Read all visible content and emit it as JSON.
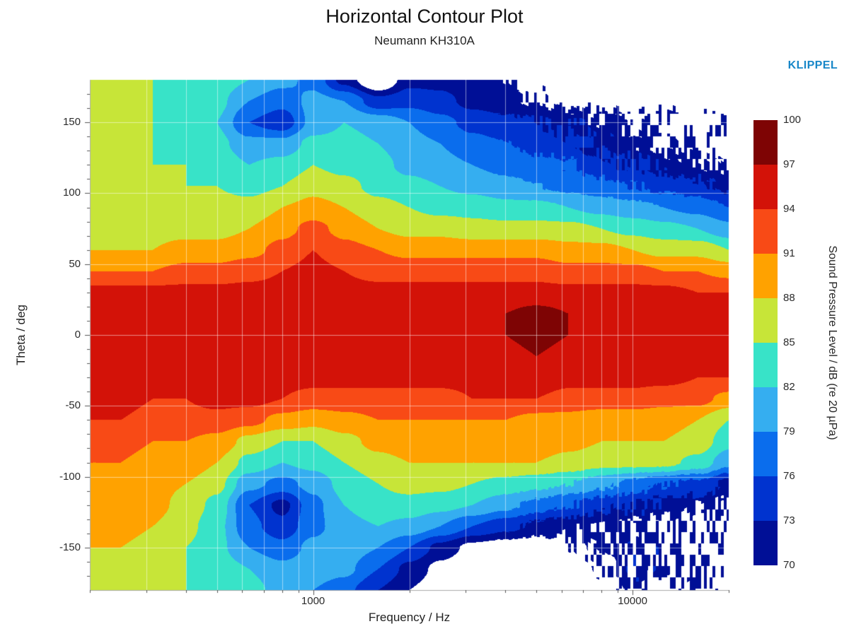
{
  "page": {
    "brand": "KLIPPEL",
    "brand_color": "#1887c8"
  },
  "chart_data": {
    "type": "heatmap",
    "title": "Horizontal Contour Plot",
    "subtitle": "Neumann KH310A",
    "xlabel": "Frequency / Hz",
    "ylabel": "Theta / deg",
    "colorbar_label": "Sound Pressure Level / dB (re 20 µPa)",
    "x_scale": "log",
    "x_range": [
      200,
      20000
    ],
    "y_range": [
      -180,
      180
    ],
    "x_major_ticks": [
      1000,
      10000
    ],
    "x_tick_labels": [
      "1000",
      "10000"
    ],
    "x_minor_ticks": [
      200,
      300,
      400,
      500,
      600,
      700,
      800,
      900,
      1000,
      2000,
      3000,
      4000,
      5000,
      6000,
      7000,
      8000,
      9000,
      10000,
      20000
    ],
    "y_major_ticks": [
      150,
      100,
      50,
      0,
      -50,
      -100,
      -150
    ],
    "y_minor_tick_step": 10,
    "grid_x": [
      300,
      400,
      500,
      600,
      700,
      800,
      900,
      1000,
      2000,
      3000,
      4000,
      5000,
      6000,
      7000,
      8000,
      9000,
      10000,
      20000
    ],
    "grid_y": [
      -150,
      -100,
      -50,
      0,
      50,
      100,
      150
    ],
    "levels": [
      70,
      73,
      76,
      79,
      82,
      85,
      88,
      91,
      94,
      97,
      100
    ],
    "level_colors": [
      "#000f96",
      "#0033cf",
      "#0a6ded",
      "#35aef0",
      "#38e3c8",
      "#c7e538",
      "#ffa200",
      "#f84a16",
      "#d31208",
      "#7e0404"
    ],
    "below_min_color": "#ffffff",
    "colorbar_ticks": [
      70,
      73,
      76,
      79,
      82,
      85,
      88,
      91,
      94,
      97,
      100
    ],
    "frequencies_hz": [
      200,
      250,
      315,
      400,
      500,
      630,
      800,
      1000,
      1250,
      1600,
      2000,
      2500,
      3150,
      4000,
      5000,
      6300,
      8000,
      10000,
      12500,
      16000,
      20000
    ],
    "theta_deg": [
      -180,
      -165,
      -150,
      -135,
      -120,
      -105,
      -90,
      -75,
      -60,
      -45,
      -30,
      -15,
      0,
      15,
      30,
      45,
      60,
      75,
      90,
      105,
      120,
      135,
      150,
      165,
      180
    ],
    "spl_db": [
      [
        86,
        86,
        85,
        85,
        84,
        83,
        81,
        79,
        77,
        73,
        70,
        68,
        67,
        67,
        66,
        67,
        68,
        70,
        69,
        68,
        68
      ],
      [
        87,
        87,
        86,
        85,
        84,
        82,
        80,
        81,
        80,
        76,
        72,
        69,
        67,
        67,
        67,
        68,
        69,
        71,
        70,
        69,
        68
      ],
      [
        88,
        88,
        87,
        85,
        83,
        79,
        77,
        80,
        81,
        79,
        76,
        72,
        69,
        68,
        68,
        69,
        70,
        71,
        70,
        69,
        68
      ],
      [
        89,
        89,
        88,
        86,
        83,
        77,
        74,
        78,
        81,
        82,
        81,
        79,
        76,
        74,
        72,
        71,
        71,
        70,
        70,
        69,
        69
      ],
      [
        89,
        89,
        89,
        87,
        84,
        76,
        72,
        78,
        82,
        84,
        84,
        83,
        82,
        80,
        78,
        76,
        74,
        73,
        72,
        71,
        70
      ],
      [
        90,
        90,
        89,
        88,
        86,
        80,
        78,
        80,
        83,
        85,
        86,
        86,
        85,
        84,
        83,
        82,
        80,
        78,
        76,
        75,
        72
      ],
      [
        91,
        91,
        90,
        90,
        88,
        84,
        82,
        83,
        85,
        87,
        88,
        88,
        88,
        88,
        88,
        87,
        86,
        86,
        86,
        84,
        80
      ],
      [
        92,
        92,
        91,
        91,
        90,
        87,
        85,
        85,
        87,
        89,
        90,
        90,
        90,
        90,
        90,
        89,
        88,
        88,
        88,
        87,
        83
      ],
      [
        94,
        94,
        93,
        93,
        93,
        92,
        90,
        89,
        90,
        91,
        91,
        91,
        91,
        91,
        90,
        90,
        89,
        89,
        89,
        88,
        85
      ],
      [
        95,
        95,
        94,
        94,
        95,
        95,
        94,
        93,
        93,
        93,
        93,
        93,
        94,
        94,
        94,
        93,
        93,
        93,
        92,
        92,
        90
      ],
      [
        95,
        95,
        95,
        95,
        96,
        96,
        95,
        95,
        95,
        95,
        95,
        95,
        95,
        95,
        96,
        95,
        95,
        95,
        95,
        94,
        94
      ],
      [
        96,
        96,
        96,
        96,
        96,
        96,
        96,
        96,
        96,
        96,
        96,
        96,
        96,
        96,
        97,
        96,
        96,
        96,
        96,
        95,
        94
      ],
      [
        96,
        96,
        96,
        96,
        96,
        96,
        96,
        96,
        96,
        96,
        96,
        96,
        96,
        97,
        98,
        97,
        96,
        97,
        96,
        95,
        94
      ],
      [
        96,
        96,
        96,
        96,
        96,
        96,
        96,
        96,
        96,
        96,
        96,
        96,
        96,
        97,
        98,
        97,
        96,
        96,
        96,
        95,
        94
      ],
      [
        95,
        95,
        95,
        95,
        95,
        95,
        95,
        95,
        95,
        95,
        95,
        95,
        95,
        95,
        95,
        95,
        95,
        95,
        95,
        94,
        94
      ],
      [
        91,
        91,
        91,
        92,
        92,
        93,
        94,
        95,
        94,
        93,
        93,
        93,
        93,
        93,
        93,
        92,
        92,
        92,
        91,
        91,
        90
      ],
      [
        88,
        88,
        88,
        89,
        89,
        90,
        92,
        94,
        92,
        91,
        90,
        90,
        90,
        90,
        90,
        89,
        89,
        88,
        87,
        87,
        85
      ],
      [
        87,
        87,
        87,
        87,
        87,
        88,
        90,
        92,
        90,
        88,
        87,
        87,
        86,
        86,
        86,
        86,
        85,
        84,
        83,
        82,
        80
      ],
      [
        86,
        86,
        86,
        86,
        86,
        86,
        88,
        89,
        88,
        86,
        85,
        84,
        84,
        83,
        83,
        82,
        81,
        80,
        79,
        78,
        76
      ],
      [
        86,
        86,
        86,
        85,
        85,
        84,
        85,
        87,
        86,
        84,
        83,
        82,
        81,
        80,
        79,
        78,
        77,
        76,
        75,
        74,
        72
      ],
      [
        86,
        86,
        85,
        85,
        84,
        82,
        83,
        85,
        84,
        83,
        81,
        80,
        79,
        78,
        77,
        76,
        74,
        73,
        72,
        71,
        70
      ],
      [
        86,
        86,
        85,
        84,
        83,
        80,
        80,
        83,
        83,
        82,
        80,
        79,
        77,
        76,
        75,
        74,
        72,
        71,
        70,
        69,
        69
      ],
      [
        87,
        86,
        85,
        84,
        82,
        76,
        74,
        80,
        82,
        81,
        79,
        77,
        75,
        74,
        73,
        72,
        71,
        70,
        69,
        68,
        68
      ],
      [
        86,
        86,
        85,
        84,
        83,
        79,
        77,
        80,
        79,
        74,
        75,
        74,
        72,
        71,
        70,
        69,
        68,
        67,
        67,
        66,
        66
      ],
      [
        86,
        86,
        85,
        85,
        84,
        82,
        80,
        78,
        72,
        66,
        72,
        72,
        71,
        70,
        69,
        68,
        67,
        66,
        66,
        65,
        65
      ]
    ]
  }
}
